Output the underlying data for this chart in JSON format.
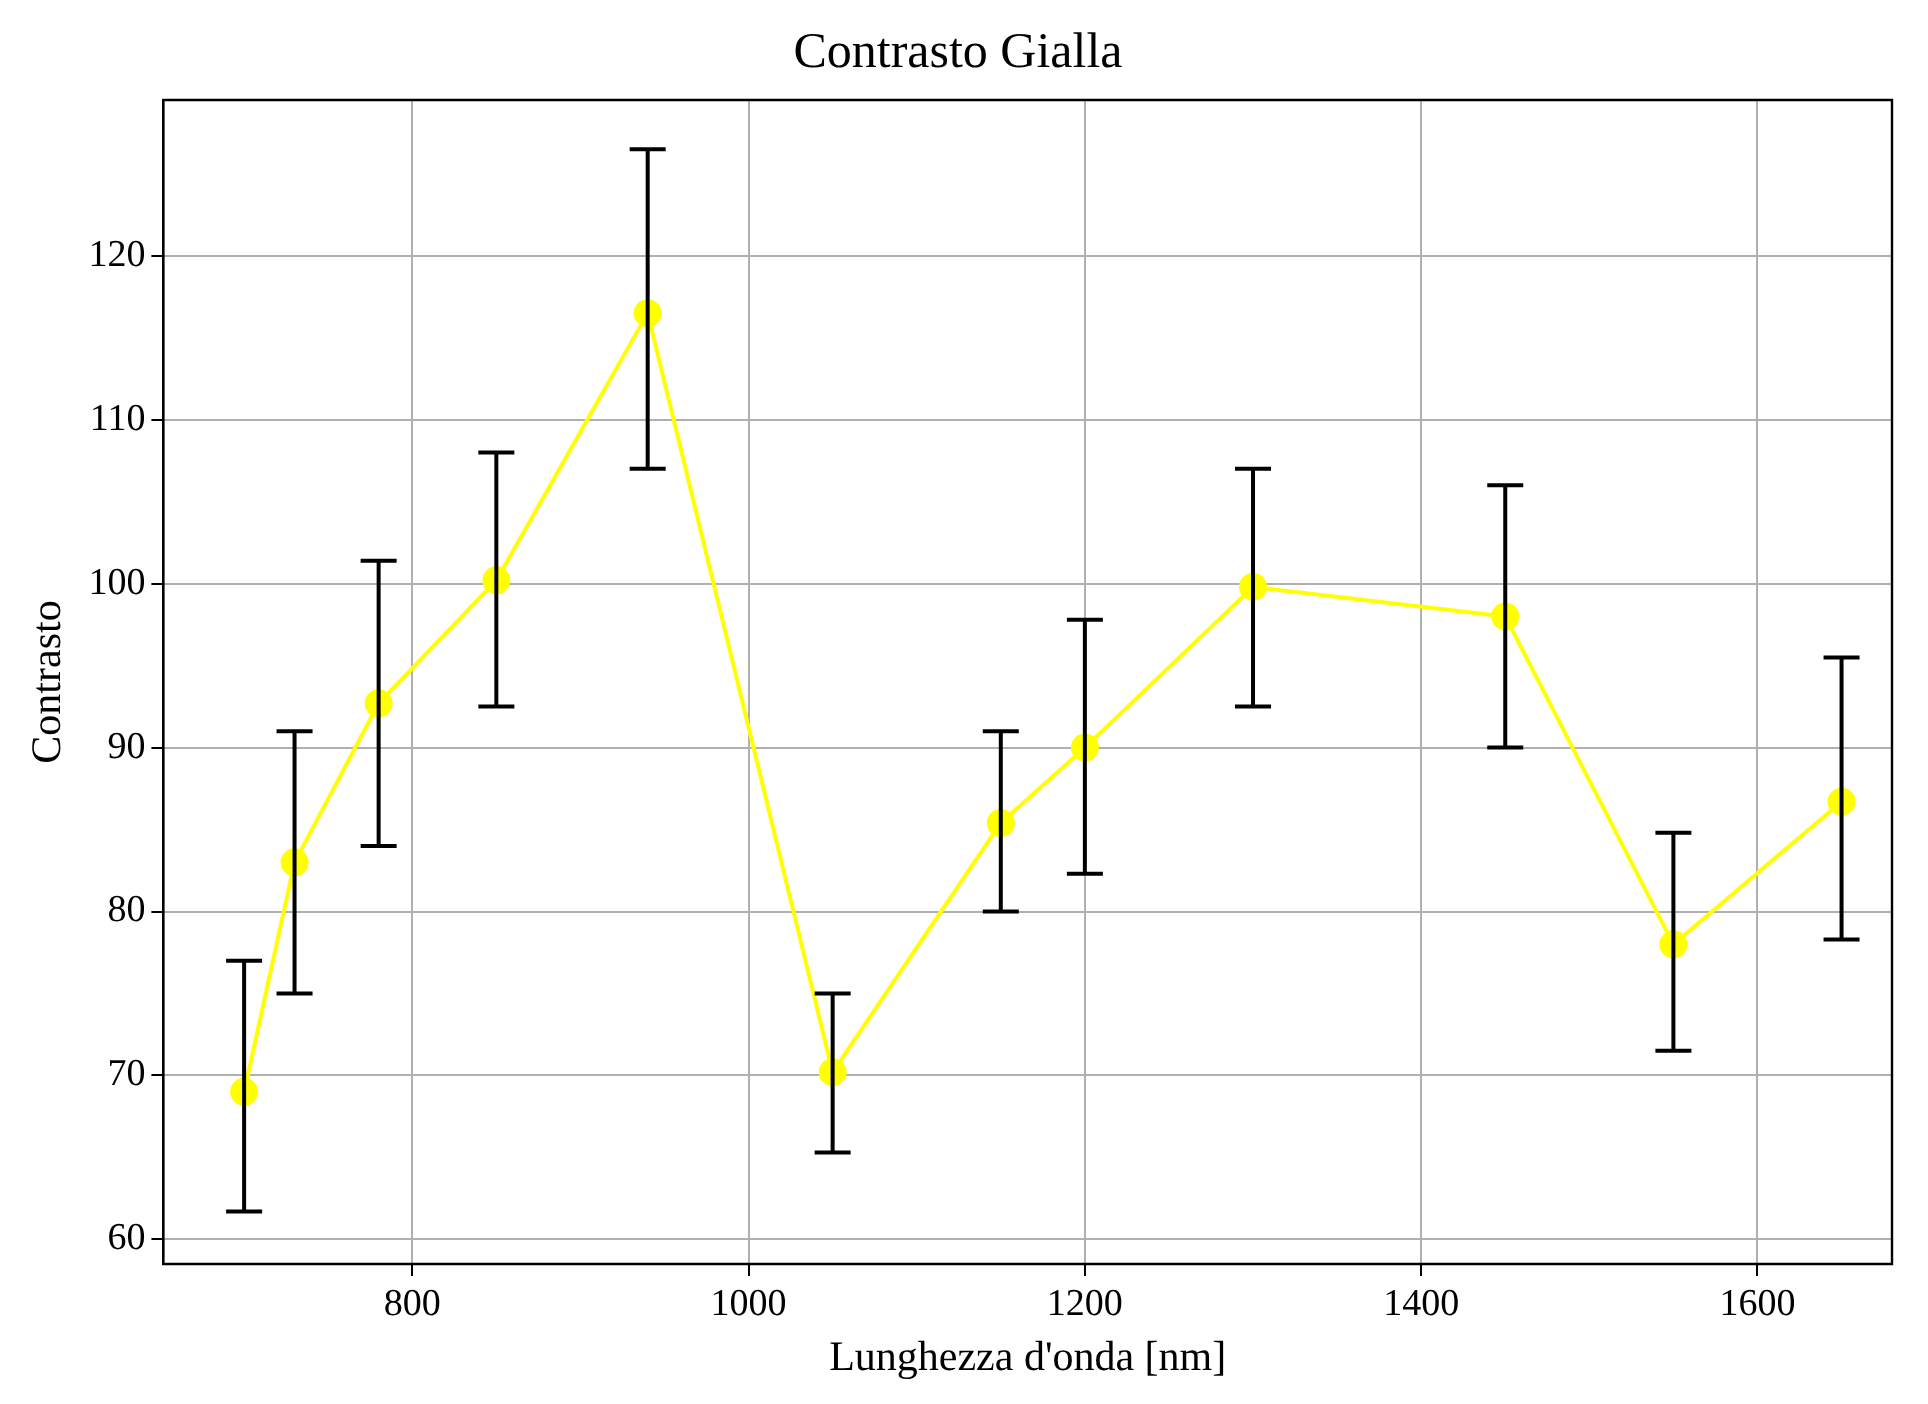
{
  "chart_data": {
    "type": "line",
    "title": "Contrasto Gialla",
    "xlabel": "Lunghezza d'onda [nm]",
    "ylabel": "Contrasto",
    "x": [
      700,
      730,
      780,
      850,
      940,
      1050,
      1150,
      1200,
      1300,
      1450,
      1550,
      1650
    ],
    "series": [
      {
        "color": "#ffff00",
        "values": [
          69,
          83,
          92.7,
          100.2,
          116.5,
          70.2,
          85.4,
          90,
          99.8,
          98,
          78,
          86.7
        ],
        "errors": [
          [
            61.7,
            77
          ],
          [
            75,
            91
          ],
          [
            84,
            101.4
          ],
          [
            92.5,
            108
          ],
          [
            107,
            126.5
          ],
          [
            65.3,
            75
          ],
          [
            80,
            91
          ],
          [
            82.3,
            97.8
          ],
          [
            92.5,
            107
          ],
          [
            90,
            106
          ],
          [
            71.5,
            84.8
          ],
          [
            78.3,
            95.5
          ]
        ]
      }
    ],
    "xlim": [
      652,
      1680
    ],
    "ylim": [
      58.5,
      129.5
    ],
    "xticks": [
      800,
      1000,
      1200,
      1400,
      1600
    ],
    "yticks": [
      60,
      70,
      80,
      90,
      100,
      110,
      120
    ],
    "grid": true,
    "marker": "circle",
    "line_style": "solid",
    "legend": false
  }
}
